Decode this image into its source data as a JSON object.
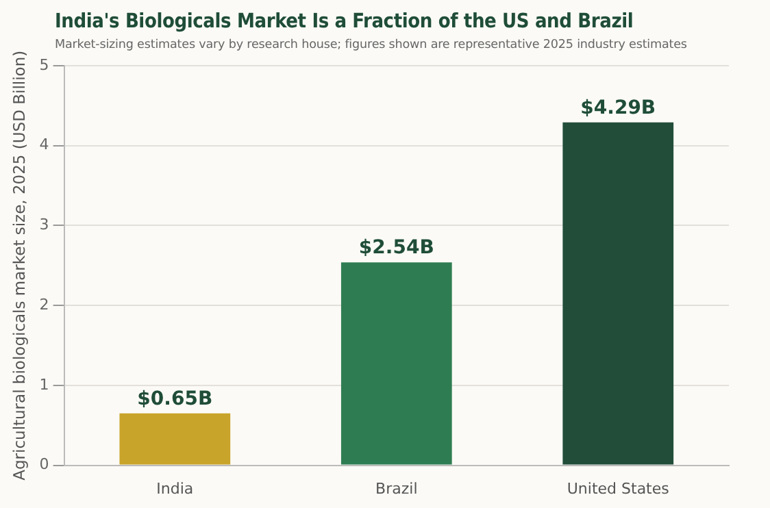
{
  "chart_data": {
    "type": "bar",
    "title": "India's Biologicals Market Is a Fraction of the US and Brazil",
    "subtitle": "Market-sizing estimates vary by research house; figures shown are representative 2025 industry estimates",
    "ylabel": "Agricultural biologicals market size, 2025 (USD Billion)",
    "categories": [
      "India",
      "Brazil",
      "United States"
    ],
    "values": [
      0.65,
      2.54,
      4.29
    ],
    "value_labels": [
      "$0.65B",
      "$2.54B",
      "$4.29B"
    ],
    "colors": [
      "#c9a42a",
      "#2e7d52",
      "#214d39"
    ],
    "ylim": [
      0,
      5
    ],
    "yticks": [
      0,
      1,
      2,
      3,
      4,
      5
    ],
    "grid": "y",
    "legend": false
  }
}
